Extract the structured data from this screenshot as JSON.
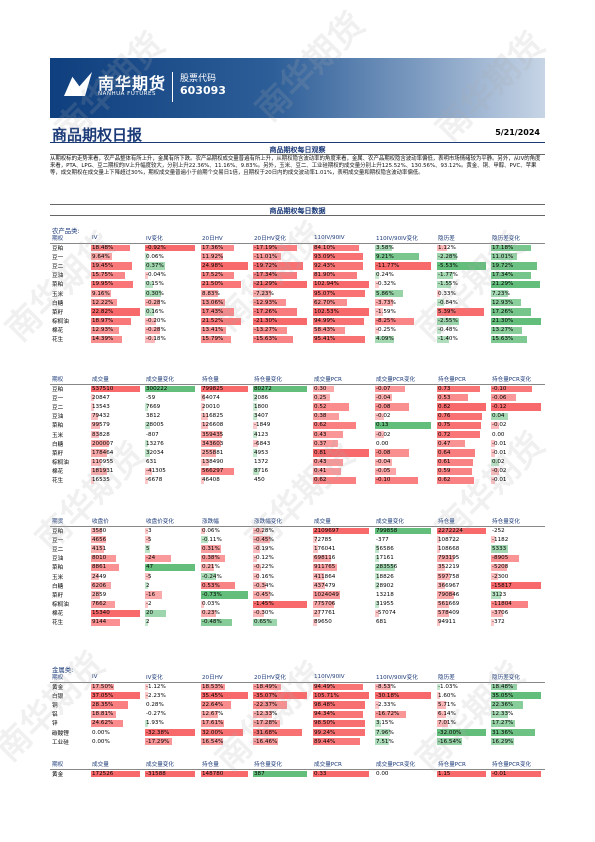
{
  "header": {
    "company_cn": "南华期货",
    "company_en": "NANHUA FUTURES",
    "stock_label": "股票代码",
    "stock_code": "603093"
  },
  "report": {
    "title": "商品期权日报",
    "date": "5/21/2024"
  },
  "sections": {
    "observation": "商品期权每日观察",
    "data": "商品期权每日数据"
  },
  "summary": "从期权标的走势来看，农产品整体有所上升，金属有所下跌。农产品期权成交量普遍有所上升，从期权隐含波动率的角度来看，金属、农产品期权隐含波动率偏低，表明市场情绪较为平静。另外，从IV的角度来看，PTA、LPG、豆二期权的IV上升幅度较大，分别上升22.36%、11.16%、9.83%。另外，玉米、豆二、工业硅期权的成交量分别上升125.52%、130.56%、93.12%。黄金、铜、甲醇、PVC、苹果等，成交期权在成交量上下降超过30%，期权成交量普遍小于前期个交易日1倍，且期权于20日内的成交波动率1.01%，表明成交量和期权隐含波动率偏低。",
  "agri_label": "农产品类:",
  "metal_label": "金属类:",
  "iv_headers": [
    "期权",
    "IV",
    "IV变化",
    "20日HV",
    "20日HV变化",
    "110IV/90IV",
    "110IV/90IV变化",
    "隐历差",
    "隐历差变化"
  ],
  "agri_iv": [
    [
      "豆粕",
      "18.48%",
      "-0.92%",
      "17.36%",
      "-17.19%",
      "84.10%",
      "3.58%",
      "1.12%",
      "17.18%"
    ],
    [
      "豆一",
      "9.64%",
      "0.06%",
      "11.92%",
      "-11.01%",
      "93.09%",
      "9.21%",
      "-2.28%",
      "11.01%"
    ],
    [
      "豆二",
      "19.45%",
      "0.37%",
      "24.98%",
      "-19.72%",
      "92.43%",
      "-11.77%",
      "-5.53%",
      "19.72%"
    ],
    [
      "豆油",
      "15.75%",
      "-0.04%",
      "17.52%",
      "-17.34%",
      "81.90%",
      "0.24%",
      "-1.77%",
      "17.34%"
    ],
    [
      "菜粕",
      "19.95%",
      "0.15%",
      "21.50%",
      "-21.29%",
      "102.94%",
      "-0.32%",
      "-1.55%",
      "21.29%"
    ],
    [
      "玉米",
      "9.16%",
      "0.30%",
      "8.83%",
      "-7.23%",
      "95.07%",
      "5.86%",
      "0.33%",
      "7.23%"
    ],
    [
      "白糖",
      "12.22%",
      "-0.28%",
      "13.06%",
      "-12.93%",
      "62.70%",
      "-3.73%",
      "-0.84%",
      "12.93%"
    ],
    [
      "菜籽",
      "22.82%",
      "0.16%",
      "17.43%",
      "-17.26%",
      "102.53%",
      "-1.59%",
      "5.39%",
      "17.26%"
    ],
    [
      "棕榈油",
      "18.97%",
      "-0.20%",
      "21.52%",
      "-21.30%",
      "94.99%",
      "-8.25%",
      "-2.55%",
      "21.30%"
    ],
    [
      "棉花",
      "12.93%",
      "-0.28%",
      "13.41%",
      "-13.27%",
      "58.43%",
      "-0.25%",
      "-0.48%",
      "13.27%"
    ],
    [
      "花生",
      "14.39%",
      "-0.18%",
      "15.79%",
      "-15.63%",
      "95.41%",
      "4.09%",
      "-1.40%",
      "15.63%"
    ]
  ],
  "vol_headers": [
    "期权",
    "成交量",
    "成交量变化",
    "持仓量",
    "持仓量变化",
    "成交量PCR",
    "成交量PCR变化",
    "持仓量PCR",
    "持仓量PCR变化"
  ],
  "agri_vol": [
    [
      "豆粕",
      "537510",
      "300222",
      "799825",
      "80272",
      "0.30",
      "-0.07",
      "0.73",
      "-0.10"
    ],
    [
      "豆一",
      "20847",
      "-59",
      "64074",
      "2086",
      "0.25",
      "-0.04",
      "0.53",
      "-0.06"
    ],
    [
      "豆二",
      "13543",
      "7669",
      "20010",
      "1800",
      "0.52",
      "-0.08",
      "0.82",
      "-0.12"
    ],
    [
      "豆油",
      "79432",
      "3812",
      "116825",
      "3407",
      "0.38",
      "-0.02",
      "0.76",
      "0.04"
    ],
    [
      "菜粕",
      "99579",
      "28005",
      "126608",
      "-1849",
      "0.62",
      "0.13",
      "0.75",
      "-0.02"
    ],
    [
      "玉米",
      "83828",
      "-807",
      "359435",
      "4123",
      "0.43",
      "-0.02",
      "0.72",
      "0.00"
    ],
    [
      "白糖",
      "200007",
      "13276",
      "343603",
      "-6843",
      "0.37",
      "0.00",
      "0.47",
      "-0.01"
    ],
    [
      "菜籽",
      "178464",
      "32034",
      "255881",
      "4953",
      "0.81",
      "-0.08",
      "0.64",
      "-0.01"
    ],
    [
      "棕榈油",
      "110955",
      "631",
      "138490",
      "1372",
      "0.43",
      "-0.04",
      "0.61",
      "0.02"
    ],
    [
      "棉花",
      "181931",
      "-41305",
      "566297",
      "8716",
      "0.41",
      "-0.05",
      "0.59",
      "-0.02"
    ],
    [
      "花生",
      "16535",
      "-6678",
      "46408",
      "450",
      "0.62",
      "-0.10",
      "0.62",
      "-0.01"
    ]
  ],
  "fut_headers": [
    "期货",
    "收盘价",
    "收盘价变化",
    "涨跌幅",
    "涨跌幅变化",
    "成交量",
    "成交量变化",
    "持仓量",
    "持仓量变化"
  ],
  "agri_fut": [
    [
      "豆粕",
      "3580",
      "-3",
      "0.06%",
      "-0.28%",
      "2109697",
      "799858",
      "2272224",
      "-252"
    ],
    [
      "豆一",
      "4656",
      "-5",
      "-0.11%",
      "-0.45%",
      "72785",
      "-377",
      "108722",
      "-1182"
    ],
    [
      "豆二",
      "4151",
      "5",
      "0.31%",
      "-0.19%",
      "176041",
      "56586",
      "108668",
      "5333"
    ],
    [
      "豆油",
      "8010",
      "-24",
      "0.38%",
      "-0.12%",
      "698116",
      "17161",
      "793195",
      "-8905"
    ],
    [
      "菜粕",
      "8861",
      "47",
      "0.21%",
      "-0.22%",
      "911765",
      "283556",
      "352219",
      "-5208"
    ],
    [
      "玉米",
      "2449",
      "-5",
      "-0.24%",
      "-0.16%",
      "411864",
      "18826",
      "597758",
      "-2300"
    ],
    [
      "白糖",
      "6206",
      "2",
      "0.53%",
      "-0.34%",
      "437479",
      "28902",
      "366967",
      "-15817"
    ],
    [
      "菜籽",
      "2859",
      "-16",
      "-0.73%",
      "-0.45%",
      "1024049",
      "13218",
      "790846",
      "3123"
    ],
    [
      "棕榈油",
      "7662",
      "-2",
      "0.03%",
      "-1.45%",
      "775706",
      "31955",
      "561669",
      "-11804"
    ],
    [
      "棉花",
      "15340",
      "20",
      "0.23%",
      "-0.30%",
      "277761",
      "-57074",
      "578409",
      "-3706"
    ],
    [
      "花生",
      "9144",
      "2",
      "-0.48%",
      "0.65%",
      "89650",
      "681",
      "94911",
      "-372"
    ]
  ],
  "metal_iv": [
    [
      "黄金",
      "17.50%",
      "-1.12%",
      "18.53%",
      "-18.49%",
      "94.49%",
      "-8.53%",
      "-1.03%",
      "18.48%"
    ],
    [
      "白银",
      "37.05%",
      "-2.23%",
      "35.45%",
      "-35.07%",
      "105.71%",
      "-30.18%",
      "1.60%",
      "35.05%"
    ],
    [
      "铜",
      "28.35%",
      "0.28%",
      "22.64%",
      "-22.37%",
      "98.48%",
      "-2.33%",
      "5.71%",
      "22.36%"
    ],
    [
      "铝",
      "18.81%",
      "-0.27%",
      "12.67%",
      "-12.33%",
      "94.34%",
      "-16.72%",
      "6.14%",
      "12.33%"
    ],
    [
      "锌",
      "24.62%",
      "1.93%",
      "17.61%",
      "-17.28%",
      "98.50%",
      "3.15%",
      "7.01%",
      "17.27%"
    ],
    [
      "碳酸锂",
      "0.00%",
      "-32.38%",
      "32.00%",
      "-31.68%",
      "99.24%",
      "7.96%",
      "-32.00%",
      "31.36%"
    ],
    [
      "工业硅",
      "0.00%",
      "-17.29%",
      "16.54%",
      "-16.46%",
      "89.44%",
      "7.51%",
      "-16.54%",
      "16.29%"
    ]
  ],
  "metal_vol": [
    [
      "黄金",
      "172526",
      "-31588",
      "148780",
      "387",
      "0.33",
      "0.00",
      "1.15",
      "-0.01"
    ]
  ],
  "watermark": "南华期货"
}
